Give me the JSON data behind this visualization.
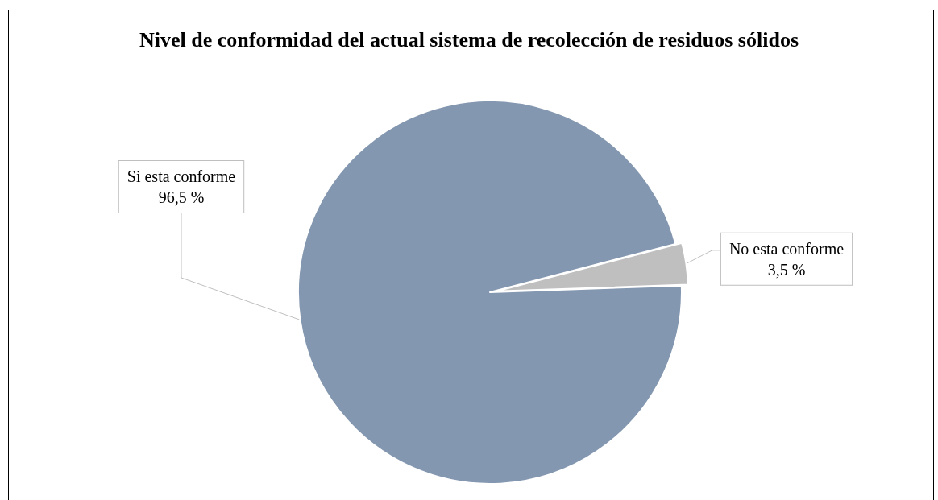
{
  "chart_data": {
    "type": "pie",
    "title": "Nivel de conformidad del actual sistema de recolección de residuos sólidos",
    "categories": [
      "Si esta conforme",
      "No esta conforme"
    ],
    "values": [
      96.5,
      3.5
    ],
    "colors": [
      "#8497b0",
      "#bfbfbf"
    ],
    "value_labels": [
      "96,5 %",
      "3,5 %"
    ],
    "legend": false
  }
}
